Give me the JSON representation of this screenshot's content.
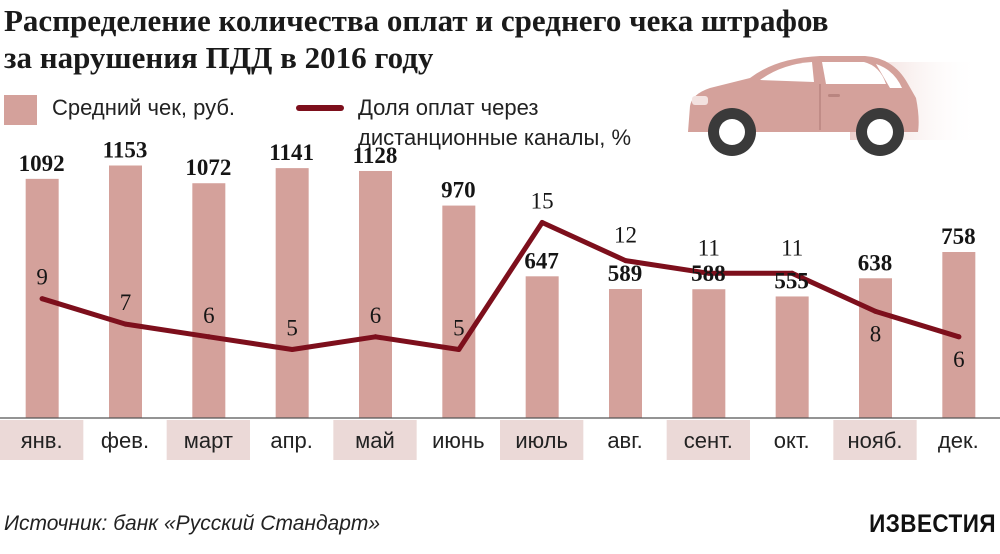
{
  "title": "Распределение количества оплат и среднего чека штрафов за нарушения ПДД в 2016 году",
  "legend": {
    "bar_label": "Средний чек, руб.",
    "line_label": "Доля оплат через\nдистанционные каналы, %"
  },
  "colors": {
    "bar": "#d4a19b",
    "line": "#7d0f1c",
    "band": "#ebd9d7"
  },
  "chart_data": {
    "type": "bar",
    "title": "Распределение количества оплат и среднего чека штрафов за нарушения ПДД в 2016 году",
    "categories": [
      "янв.",
      "фев.",
      "март",
      "апр.",
      "май",
      "июнь",
      "июль",
      "авг.",
      "сент.",
      "окт.",
      "нояб.",
      "дек."
    ],
    "series": [
      {
        "name": "Средний чек, руб.",
        "type": "bar",
        "values": [
          1092,
          1153,
          1072,
          1141,
          1128,
          970,
          647,
          589,
          588,
          555,
          638,
          758
        ]
      },
      {
        "name": "Доля оплат через дистанционные каналы, %",
        "type": "line",
        "values": [
          9,
          7,
          6,
          5,
          6,
          5,
          15,
          12,
          11,
          11,
          8,
          6
        ]
      }
    ],
    "xlabel": "",
    "ylabel": "",
    "bar_ylim": [
      0,
      1400
    ],
    "line_ylim": [
      0,
      20
    ]
  },
  "source": "Источник: банк «Русский Стандарт»",
  "logo": "ИЗВЕСТИЯ",
  "car_icon": "car-icon"
}
